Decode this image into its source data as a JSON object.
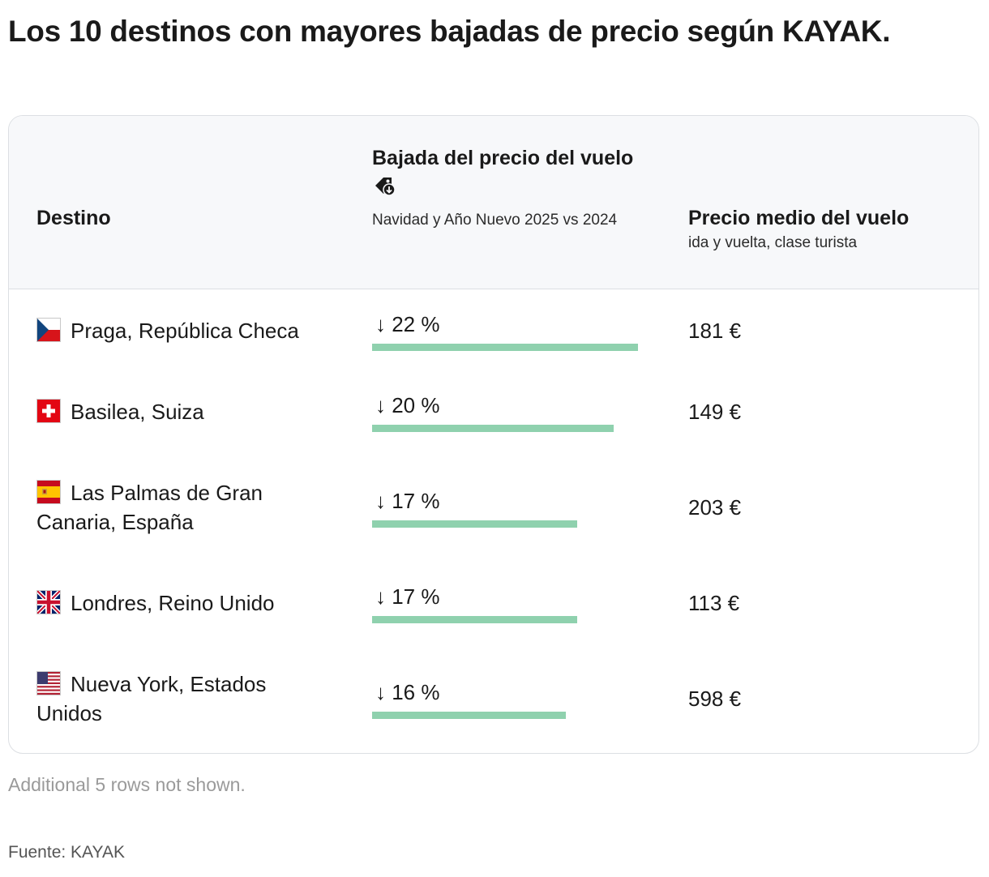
{
  "title": "Los 10 destinos con mayores bajadas de precio según KAYAK.",
  "table": {
    "col_destino": "Destino",
    "col_bajada_title": "Bajada del precio del vuelo",
    "col_bajada_sub": "Navidad y Año Nuevo 2025 vs 2024",
    "col_precio_title": "Precio medio del vuelo",
    "col_precio_sub": "ida y vuelta, clase turista",
    "bar_color": "#8fd1ae",
    "rows": [
      {
        "flag": "czech-flag-icon",
        "destino": "Praga, República Checa",
        "bajada": "↓ 22 %",
        "bajada_pct": 22,
        "precio": "181 €"
      },
      {
        "flag": "swiss-flag-icon",
        "destino": "Basilea, Suiza",
        "bajada": "↓ 20 %",
        "bajada_pct": 20,
        "precio": "149 €"
      },
      {
        "flag": "spain-flag-icon",
        "destino": "Las Palmas de Gran Canaria, España",
        "bajada": "↓ 17 %",
        "bajada_pct": 17,
        "precio": "203 €"
      },
      {
        "flag": "uk-flag-icon",
        "destino": "Londres, Reino Unido",
        "bajada": "↓ 17 %",
        "bajada_pct": 17,
        "precio": "113 €"
      },
      {
        "flag": "usa-flag-icon",
        "destino": "Nueva York, Estados Unidos",
        "bajada": "↓ 16 %",
        "bajada_pct": 16,
        "precio": "598 €"
      }
    ]
  },
  "note": "Additional 5 rows not shown.",
  "source": "Fuente: KAYAK",
  "chart_data": {
    "type": "table",
    "title": "Los 10 destinos con mayores bajadas de precio según KAYAK.",
    "columns": [
      "Destino",
      "Bajada del precio del vuelo",
      "Precio medio del vuelo"
    ],
    "categories": [
      "Praga, República Checa",
      "Basilea, Suiza",
      "Las Palmas de Gran Canaria, España",
      "Londres, Reino Unido",
      "Nueva York, Estados Unidos"
    ],
    "series": [
      {
        "name": "Bajada del precio del vuelo",
        "values": [
          22,
          20,
          17,
          17,
          16
        ]
      },
      {
        "name": "Precio medio del vuelo",
        "values": [
          181,
          149,
          203,
          113,
          598
        ]
      }
    ]
  }
}
